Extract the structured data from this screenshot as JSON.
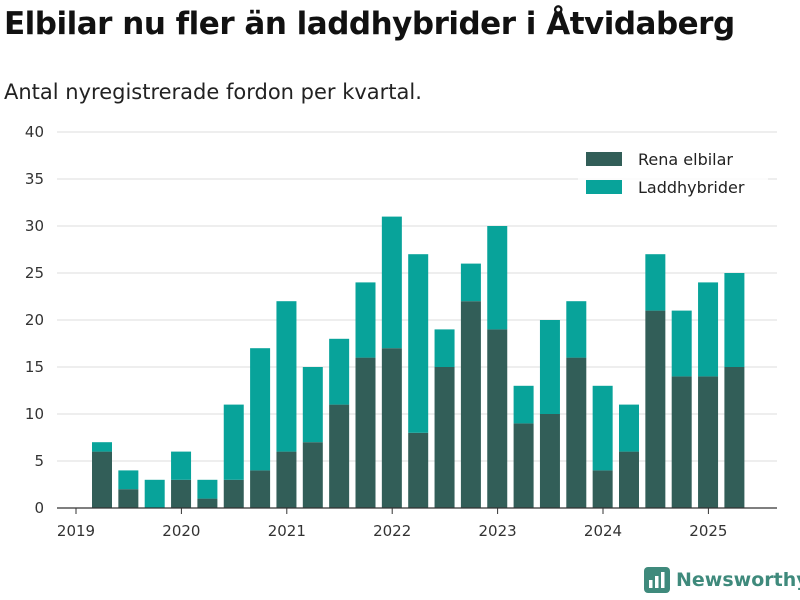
{
  "title": "Elbilar nu fler än laddhybrider i Åtvidaberg",
  "subtitle": "Antal nyregistrerade fordon per kvartal.",
  "brand": "Newsworthy",
  "colors": {
    "elbilar": "#325e58",
    "laddhybrider": "#08a39a",
    "grid": "#dddddd",
    "axis": "#333333"
  },
  "chart_data": {
    "type": "bar",
    "stacked": true,
    "grid": true,
    "legend_position": "top-right",
    "ylim": [
      0,
      40
    ],
    "yticks": [
      0,
      5,
      10,
      15,
      20,
      25,
      30,
      35,
      40
    ],
    "x_tick_labels": [
      "2019",
      "2020",
      "2021",
      "2022",
      "2023",
      "2024",
      "2025"
    ],
    "categories": [
      "2019 Q2",
      "2019 Q3",
      "2019 Q4",
      "2020 Q1",
      "2020 Q2",
      "2020 Q3",
      "2020 Q4",
      "2021 Q1",
      "2021 Q2",
      "2021 Q3",
      "2021 Q4",
      "2022 Q1",
      "2022 Q2",
      "2022 Q3",
      "2022 Q4",
      "2023 Q1",
      "2023 Q2",
      "2023 Q3",
      "2023 Q4",
      "2024 Q1",
      "2024 Q2",
      "2024 Q3",
      "2024 Q4",
      "2025 Q1",
      "2025 Q2"
    ],
    "series": [
      {
        "name": "Rena elbilar",
        "values": [
          6,
          2,
          0,
          3,
          1,
          3,
          4,
          6,
          7,
          11,
          16,
          17,
          8,
          15,
          22,
          19,
          9,
          10,
          16,
          4,
          6,
          21,
          14,
          14,
          15
        ]
      },
      {
        "name": "Laddhybrider",
        "values": [
          1,
          2,
          3,
          3,
          2,
          8,
          13,
          16,
          8,
          7,
          8,
          14,
          19,
          4,
          4,
          11,
          4,
          10,
          6,
          9,
          5,
          6,
          7,
          10,
          10
        ]
      }
    ]
  }
}
